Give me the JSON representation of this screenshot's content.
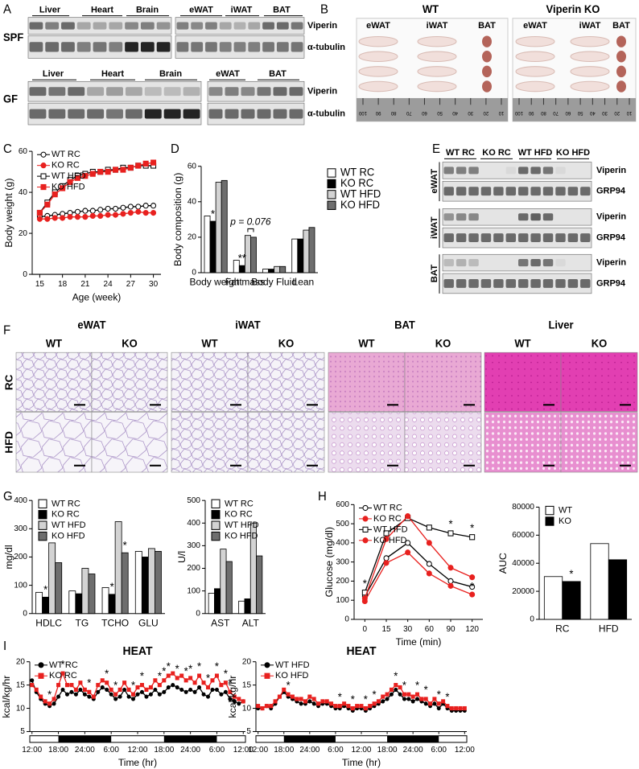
{
  "panels": {
    "letters": [
      "A",
      "B",
      "C",
      "D",
      "E",
      "F",
      "G",
      "H",
      "I"
    ],
    "a": {
      "spf": "SPF",
      "gf": "GF",
      "spf_left": [
        "Liver",
        "Heart",
        "Brain"
      ],
      "spf_right": [
        "eWAT",
        "iWAT",
        "BAT"
      ],
      "gf_left": [
        "Liver",
        "Heart",
        "Brain"
      ],
      "gf_right": [
        "eWAT",
        "BAT"
      ],
      "rows": [
        "Viperin",
        "α-tubulin"
      ]
    },
    "b": {
      "groups": [
        "WT",
        "Viperin KO"
      ],
      "tissues": [
        "eWAT",
        "iWAT",
        "BAT"
      ],
      "ruler": [
        "100",
        "90",
        "80",
        "70",
        "60",
        "50",
        "40",
        "30",
        "20",
        "10"
      ]
    },
    "e": {
      "groups": [
        "WT RC",
        "KO RC",
        "WT HFD",
        "KO HFD"
      ],
      "tissues": [
        "eWAT",
        "iWAT",
        "BAT"
      ],
      "rows": [
        "Viperin",
        "GRP94"
      ]
    },
    "f": {
      "tissues": [
        "eWAT",
        "iWAT",
        "BAT",
        "Liver"
      ],
      "genotypes": [
        "WT",
        "KO"
      ],
      "diets": [
        "RC",
        "HFD"
      ]
    }
  },
  "chart_data": [
    {
      "type": "line",
      "xlabel": "Age (week)",
      "ylabel": "Body weight (g)",
      "x": [
        15,
        16,
        17,
        18,
        19,
        20,
        21,
        22,
        23,
        24,
        25,
        26,
        27,
        28,
        29,
        30
      ],
      "xlim": [
        14,
        31
      ],
      "xticks": [
        15,
        18,
        21,
        24,
        27,
        30
      ],
      "ylim": [
        0,
        60
      ],
      "yticks": [
        0,
        20,
        40,
        60
      ],
      "legend": "upper left",
      "series": [
        {
          "name": "WT RC",
          "color": "#000000",
          "marker": "circle",
          "marker_fill": "#ffffff",
          "values": [
            28,
            28.5,
            29,
            29.5,
            30,
            30.5,
            31,
            31,
            31.5,
            32,
            32,
            32.5,
            33,
            33,
            33.5,
            33.5
          ]
        },
        {
          "name": "KO RC",
          "color": "#e8211f",
          "marker": "circle",
          "marker_fill": "#e8211f",
          "values": [
            27,
            27,
            27.5,
            27.5,
            28,
            28,
            28,
            28.5,
            28.5,
            29,
            29,
            29.5,
            30,
            30.5,
            30,
            30
          ]
        },
        {
          "name": "WT HFD",
          "color": "#000000",
          "marker": "square",
          "marker_fill": "#ffffff",
          "values": [
            30,
            35,
            40,
            43,
            46,
            48,
            49,
            50,
            50,
            51,
            51,
            52,
            52,
            53,
            53,
            53
          ]
        },
        {
          "name": "KO HFD",
          "color": "#e8211f",
          "marker": "square",
          "marker_fill": "#e8211f",
          "values": [
            30,
            34,
            39,
            42,
            45,
            47,
            48,
            49,
            50,
            50,
            51,
            51,
            52,
            53,
            54,
            54.5
          ]
        }
      ]
    },
    {
      "type": "bar",
      "ylabel": "Body composition (g)",
      "categories": [
        "Body weight",
        "Fat mass",
        "Body Fluid",
        "Lean"
      ],
      "ylim": [
        0,
        60
      ],
      "yticks": [
        0,
        20,
        40,
        60
      ],
      "legend": "right",
      "series": [
        {
          "name": "WT RC",
          "color": "#ffffff",
          "values": [
            32,
            7,
            2,
            19
          ]
        },
        {
          "name": "KO RC",
          "color": "#000000",
          "values": [
            29,
            4,
            2,
            19
          ]
        },
        {
          "name": "WT HFD",
          "color": "#d3d3d3",
          "values": [
            51,
            21,
            3.5,
            24
          ]
        },
        {
          "name": "KO HFD",
          "color": "#6e6e6e",
          "values": [
            52,
            20,
            3.5,
            25.5
          ]
        }
      ],
      "annotations": [
        {
          "text": "*",
          "category": 0,
          "series": 1
        },
        {
          "text": "**",
          "category": 1,
          "series": 1
        },
        {
          "text": "p = 0.076",
          "category": 1,
          "series": [
            2,
            3
          ]
        }
      ]
    },
    {
      "type": "bar",
      "ylabel": "mg/dl",
      "categories": [
        "HDLC",
        "TG",
        "TCHO",
        "GLU"
      ],
      "ylim": [
        0,
        400
      ],
      "yticks": [
        0,
        100,
        200,
        300,
        400
      ],
      "legend": "upper left",
      "series": [
        {
          "name": "WT RC",
          "color": "#ffffff",
          "values": [
            75,
            80,
            92,
            220
          ]
        },
        {
          "name": "KO RC",
          "color": "#000000",
          "values": [
            58,
            70,
            68,
            200
          ]
        },
        {
          "name": "WT HFD",
          "color": "#d3d3d3",
          "values": [
            250,
            160,
            325,
            230
          ]
        },
        {
          "name": "KO HFD",
          "color": "#6e6e6e",
          "values": [
            180,
            140,
            215,
            220
          ]
        }
      ],
      "annotations": [
        {
          "text": "*",
          "category": 0,
          "series": 1
        },
        {
          "text": "*",
          "category": 2,
          "series": 1
        },
        {
          "text": "*",
          "category": 2,
          "series": 3
        }
      ]
    },
    {
      "type": "bar",
      "ylabel": "U/l",
      "categories": [
        "AST",
        "ALT"
      ],
      "ylim": [
        0,
        500
      ],
      "yticks": [
        0,
        100,
        200,
        300,
        400,
        500
      ],
      "legend": "upper left",
      "series": [
        {
          "name": "WT RC",
          "color": "#ffffff",
          "values": [
            90,
            55
          ]
        },
        {
          "name": "KO RC",
          "color": "#000000",
          "values": [
            110,
            65
          ]
        },
        {
          "name": "WT HFD",
          "color": "#d3d3d3",
          "values": [
            285,
            400
          ]
        },
        {
          "name": "KO HFD",
          "color": "#6e6e6e",
          "values": [
            230,
            255
          ]
        }
      ]
    },
    {
      "type": "line",
      "xlabel": "Time (min)",
      "ylabel": "Glucose (mg/dl)",
      "categories": [
        "0",
        "15",
        "30",
        "60",
        "90",
        "120"
      ],
      "ylim": [
        0,
        600
      ],
      "yticks": [
        0,
        100,
        200,
        300,
        400,
        500,
        600
      ],
      "legend": "upper left",
      "series": [
        {
          "name": "WT RC",
          "color": "#000000",
          "marker": "circle",
          "marker_fill": "#ffffff",
          "values": [
            120,
            320,
            400,
            290,
            200,
            170
          ]
        },
        {
          "name": "KO RC",
          "color": "#e8211f",
          "marker": "circle",
          "marker_fill": "#e8211f",
          "values": [
            95,
            295,
            350,
            240,
            175,
            130
          ]
        },
        {
          "name": "WT HFD",
          "color": "#000000",
          "marker": "square",
          "marker_fill": "#ffffff",
          "values": [
            140,
            450,
            530,
            480,
            450,
            430
          ]
        },
        {
          "name": "KO HFD",
          "color": "#e8211f",
          "marker": "circle",
          "marker_fill": "#e8211f",
          "values": [
            110,
            420,
            540,
            400,
            270,
            220
          ]
        }
      ],
      "annotations": [
        {
          "text": "*",
          "category": 0,
          "series": 2
        },
        {
          "text": "*",
          "category": 4,
          "series": 2
        },
        {
          "text": "*",
          "category": 5,
          "series": 2
        },
        {
          "text": "*",
          "category": 5,
          "series": 3,
          "position": "below"
        }
      ]
    },
    {
      "type": "bar",
      "ylabel": "AUC",
      "categories": [
        "RC",
        "HFD"
      ],
      "ylim": [
        0,
        80000
      ],
      "yticks": [
        0,
        20000,
        40000,
        60000,
        80000
      ],
      "legend": "upper left",
      "series": [
        {
          "name": "WT",
          "color": "#ffffff",
          "values": [
            30500,
            54000
          ]
        },
        {
          "name": "KO",
          "color": "#000000",
          "values": [
            27000,
            42500
          ]
        }
      ],
      "annotations": [
        {
          "text": "*",
          "category": 0,
          "series": 1
        }
      ]
    },
    {
      "type": "line",
      "title": "HEAT",
      "xlabel": "Time (hr)",
      "ylabel": "kcal/kg/hr",
      "categories": [
        "12:00",
        null,
        null,
        null,
        null,
        null,
        "18:00",
        null,
        null,
        null,
        null,
        null,
        "24:00",
        null,
        null,
        null,
        null,
        null,
        "6:00",
        null,
        null,
        null,
        null,
        null,
        "12:00",
        null,
        null,
        null,
        null,
        null,
        "18:00",
        null,
        null,
        null,
        null,
        null,
        "24:00",
        null,
        null,
        null,
        null,
        null,
        "6:00",
        null,
        null,
        null,
        null,
        null,
        "12:00"
      ],
      "ylim": [
        5,
        20
      ],
      "yticks": [
        5,
        10,
        15,
        20
      ],
      "legend": "upper left",
      "series": [
        {
          "name": "WT RC",
          "color": "#000000",
          "marker": "circle",
          "marker_fill": "#000000",
          "values": [
            16,
            13.5,
            12,
            11,
            10.5,
            11,
            12.5,
            14,
            13,
            13.5,
            13,
            14,
            13,
            12.5,
            12,
            13.5,
            14.5,
            14,
            13,
            12,
            12.5,
            14,
            12.5,
            12,
            13,
            13.5,
            12.5,
            13,
            14,
            13,
            13.5,
            14.5,
            15,
            14.5,
            14,
            13.5,
            14,
            13.5,
            14.5,
            13,
            12.5,
            14,
            14,
            13,
            13.5,
            12,
            11.5,
            11,
            11.5
          ]
        },
        {
          "name": "KO RC",
          "color": "#e8211f",
          "marker": "square",
          "marker_fill": "#e8211f",
          "values": [
            15,
            14,
            12.5,
            11.5,
            11,
            12,
            15,
            17.5,
            15,
            15,
            14,
            15.5,
            14,
            13.5,
            12.5,
            15,
            16,
            15.5,
            14,
            13,
            14,
            15.5,
            14,
            13,
            14.5,
            15,
            14,
            14.5,
            16,
            15,
            16,
            17,
            17.5,
            16.5,
            17,
            16,
            16.5,
            15.5,
            17,
            15.5,
            14.5,
            16,
            17,
            15,
            15.5,
            13.5,
            12.5,
            12,
            11.5
          ]
        }
      ],
      "annotations": [
        {
          "text": "*",
          "category": 4,
          "series": 1
        },
        {
          "text": "*",
          "category": 7,
          "series": 1
        },
        {
          "text": "*",
          "category": 13,
          "series": 1
        },
        {
          "text": "*",
          "category": 17,
          "series": 1
        },
        {
          "text": "*",
          "category": 19,
          "series": 1
        },
        {
          "text": "*",
          "category": 23,
          "series": 1
        },
        {
          "text": "*",
          "category": 25,
          "series": 1
        },
        {
          "text": "*",
          "category": 29,
          "series": 1
        },
        {
          "text": "*",
          "category": 30,
          "series": 1
        },
        {
          "text": "*",
          "category": 31,
          "series": 1
        },
        {
          "text": "*",
          "category": 33,
          "series": 1
        },
        {
          "text": "*",
          "category": 35,
          "series": 1
        },
        {
          "text": "*",
          "category": 36,
          "series": 1
        },
        {
          "text": "*",
          "category": 38,
          "series": 1
        },
        {
          "text": "*",
          "category": 40,
          "series": 1
        },
        {
          "text": "*",
          "category": 42,
          "series": 1
        },
        {
          "text": "*",
          "category": 44,
          "series": 1
        },
        {
          "text": "*",
          "category": 45,
          "series": 1
        }
      ]
    },
    {
      "type": "line",
      "title": "HEAT",
      "xlabel": "Time (hr)",
      "ylabel": "kcal/kg/hr",
      "categories": [
        "12:00",
        null,
        null,
        null,
        null,
        null,
        "18:00",
        null,
        null,
        null,
        null,
        null,
        "24:00",
        null,
        null,
        null,
        null,
        null,
        "6:00",
        null,
        null,
        null,
        null,
        null,
        "12:00",
        null,
        null,
        null,
        null,
        null,
        "18:00",
        null,
        null,
        null,
        null,
        null,
        "24:00",
        null,
        null,
        null,
        null,
        null,
        "6:00",
        null,
        null,
        null,
        null,
        null,
        "12:00"
      ],
      "ylim": [
        5,
        20
      ],
      "yticks": [
        5,
        10,
        15,
        20
      ],
      "legend": "upper left",
      "series": [
        {
          "name": "WT HFD",
          "color": "#000000",
          "marker": "circle",
          "marker_fill": "#000000",
          "values": [
            10,
            10,
            10.5,
            10,
            11,
            12.5,
            13.5,
            12.5,
            12,
            11.5,
            11,
            11,
            11.5,
            11,
            10.5,
            11,
            11,
            10.5,
            10,
            10,
            10.5,
            10,
            9.5,
            10,
            10,
            9.5,
            10,
            10.5,
            11,
            11.5,
            12,
            13,
            14,
            13,
            12,
            12,
            11.5,
            12,
            11.5,
            11,
            10.5,
            11,
            10,
            11,
            10,
            9.5,
            9.5,
            9.5,
            9.5
          ]
        },
        {
          "name": "KO HFD",
          "color": "#e8211f",
          "marker": "square",
          "marker_fill": "#e8211f",
          "values": [
            10.5,
            10,
            10.5,
            10.5,
            11.5,
            12.5,
            14,
            13,
            12.5,
            12,
            12,
            11.5,
            12.5,
            12,
            11,
            11.5,
            11.5,
            11,
            10.5,
            10.5,
            11,
            10.5,
            10,
            10.5,
            10.5,
            10,
            10.5,
            11,
            11.5,
            12.5,
            13,
            14,
            15,
            14.5,
            13,
            13,
            12.5,
            13,
            12,
            12,
            11,
            12,
            11,
            11.5,
            10.5,
            10,
            10,
            10,
            10
          ]
        }
      ],
      "annotations": [
        {
          "text": "*",
          "category": 7,
          "series": 1
        },
        {
          "text": "*",
          "category": 19,
          "series": 1
        },
        {
          "text": "*",
          "category": 22,
          "series": 1
        },
        {
          "text": "*",
          "category": 25,
          "series": 1
        },
        {
          "text": "*",
          "category": 27,
          "series": 1
        },
        {
          "text": "*",
          "category": 32,
          "series": 1
        },
        {
          "text": "*",
          "category": 34,
          "series": 1
        },
        {
          "text": "*",
          "category": 37,
          "series": 1
        },
        {
          "text": "*",
          "category": 39,
          "series": 1
        },
        {
          "text": "*",
          "category": 42,
          "series": 1
        },
        {
          "text": "*",
          "category": 44,
          "series": 1
        }
      ]
    }
  ]
}
